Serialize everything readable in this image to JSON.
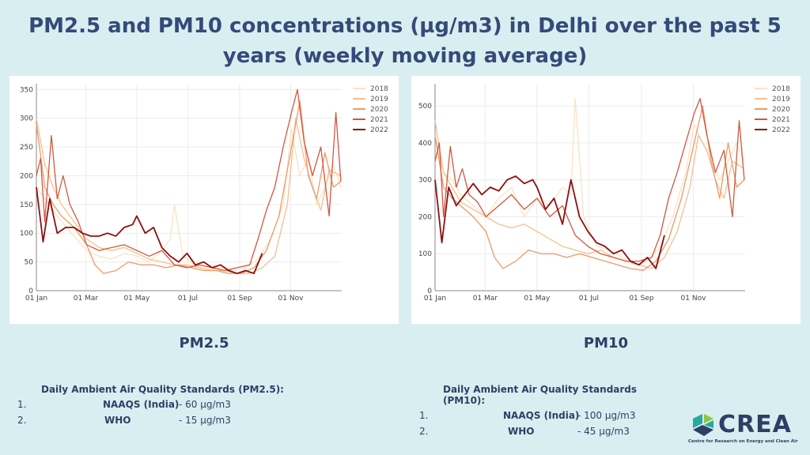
{
  "title": "PM2.5 and PM10 concentrations (µg/m3) in Delhi over the past 5 years (weekly moving average)",
  "charts": {
    "pm25": {
      "label": "PM2.5"
    },
    "pm10": {
      "label": "PM10"
    }
  },
  "chart_data": [
    {
      "type": "line",
      "title": "PM2.5",
      "xlabel": "",
      "ylabel": "",
      "xlim": [
        0,
        365
      ],
      "ylim": [
        0,
        360
      ],
      "yticks": [
        0,
        50,
        100,
        150,
        200,
        250,
        300,
        350
      ],
      "xticks": [
        {
          "x": 0,
          "label": "01 Jan"
        },
        {
          "x": 59,
          "label": "01 Mar"
        },
        {
          "x": 120,
          "label": "01 May"
        },
        {
          "x": 181,
          "label": "01 Jul"
        },
        {
          "x": 243,
          "label": "01 Sep"
        },
        {
          "x": 304,
          "label": "01 Nov"
        }
      ],
      "legend_position": "top-right",
      "grid": true,
      "series": [
        {
          "name": "2018",
          "color": "#fbe3c2",
          "x": [
            0,
            10,
            20,
            30,
            45,
            60,
            75,
            90,
            105,
            120,
            135,
            150,
            160,
            165,
            175,
            190,
            205,
            220,
            235,
            250,
            265,
            280,
            295,
            305,
            315,
            325,
            335,
            345,
            355,
            364
          ],
          "y": [
            180,
            160,
            140,
            120,
            95,
            70,
            60,
            55,
            65,
            60,
            50,
            70,
            90,
            150,
            60,
            45,
            35,
            40,
            35,
            40,
            55,
            90,
            150,
            280,
            200,
            230,
            150,
            180,
            220,
            180
          ]
        },
        {
          "name": "2019",
          "color": "#f4c08e",
          "x": [
            0,
            10,
            20,
            30,
            45,
            60,
            75,
            90,
            105,
            120,
            135,
            150,
            165,
            180,
            195,
            210,
            225,
            240,
            255,
            270,
            285,
            300,
            310,
            320,
            330,
            340,
            350,
            364
          ],
          "y": [
            300,
            220,
            180,
            150,
            120,
            90,
            75,
            70,
            75,
            65,
            55,
            50,
            45,
            45,
            40,
            35,
            35,
            30,
            30,
            40,
            60,
            150,
            300,
            230,
            180,
            140,
            210,
            200
          ]
        },
        {
          "name": "2020",
          "color": "#ec9a6a",
          "x": [
            0,
            10,
            20,
            30,
            45,
            60,
            70,
            80,
            95,
            110,
            125,
            140,
            155,
            170,
            185,
            200,
            215,
            230,
            245,
            260,
            275,
            290,
            305,
            315,
            325,
            335,
            345,
            355,
            364
          ],
          "y": [
            290,
            180,
            150,
            130,
            110,
            80,
            45,
            30,
            35,
            50,
            45,
            45,
            40,
            45,
            40,
            35,
            35,
            30,
            30,
            40,
            70,
            130,
            250,
            330,
            200,
            160,
            240,
            180,
            190
          ]
        },
        {
          "name": "2021",
          "color": "#d3573f",
          "x": [
            0,
            5,
            10,
            18,
            25,
            32,
            40,
            50,
            60,
            75,
            90,
            105,
            120,
            135,
            150,
            165,
            180,
            195,
            210,
            225,
            240,
            255,
            265,
            275,
            285,
            295,
            305,
            312,
            320,
            330,
            340,
            350,
            358,
            364
          ],
          "y": [
            200,
            230,
            120,
            270,
            160,
            200,
            150,
            120,
            80,
            70,
            75,
            80,
            70,
            60,
            70,
            45,
            40,
            45,
            40,
            35,
            40,
            45,
            90,
            140,
            180,
            250,
            310,
            350,
            260,
            200,
            250,
            130,
            310,
            190
          ]
        },
        {
          "name": "2022",
          "color": "#8c1010",
          "x": [
            0,
            8,
            16,
            25,
            35,
            45,
            55,
            65,
            75,
            85,
            95,
            105,
            115,
            120,
            130,
            140,
            150,
            160,
            170,
            180,
            190,
            200,
            210,
            220,
            230,
            240,
            250,
            260,
            270
          ],
          "y": [
            180,
            85,
            160,
            100,
            110,
            110,
            100,
            95,
            95,
            100,
            95,
            110,
            115,
            130,
            100,
            110,
            75,
            60,
            50,
            65,
            45,
            50,
            40,
            45,
            35,
            30,
            35,
            30,
            65
          ]
        }
      ]
    },
    {
      "type": "line",
      "title": "PM10",
      "xlabel": "",
      "ylabel": "",
      "xlim": [
        0,
        365
      ],
      "ylim": [
        0,
        560
      ],
      "yticks": [
        0,
        100,
        200,
        300,
        400,
        500
      ],
      "xticks": [
        {
          "x": 0,
          "label": "01 Jan"
        },
        {
          "x": 59,
          "label": "01 Mar"
        },
        {
          "x": 120,
          "label": "01 May"
        },
        {
          "x": 181,
          "label": "01 Jul"
        },
        {
          "x": 243,
          "label": "01 Sep"
        },
        {
          "x": 304,
          "label": "01 Nov"
        }
      ],
      "legend_position": "top-right",
      "grid": true,
      "series": [
        {
          "name": "2018",
          "color": "#fbe3c2",
          "x": [
            0,
            10,
            20,
            30,
            45,
            60,
            75,
            90,
            105,
            120,
            135,
            150,
            160,
            165,
            175,
            190,
            205,
            220,
            235,
            250,
            265,
            280,
            295,
            305,
            315,
            325,
            335,
            345,
            355,
            364
          ],
          "y": [
            420,
            320,
            300,
            260,
            230,
            200,
            250,
            280,
            200,
            250,
            230,
            280,
            260,
            520,
            200,
            120,
            110,
            90,
            70,
            80,
            120,
            200,
            320,
            450,
            400,
            350,
            300,
            350,
            400,
            350
          ]
        },
        {
          "name": "2019",
          "color": "#f4c08e",
          "x": [
            0,
            10,
            20,
            30,
            45,
            60,
            75,
            90,
            105,
            120,
            135,
            150,
            165,
            180,
            195,
            210,
            225,
            240,
            255,
            270,
            285,
            300,
            310,
            320,
            330,
            340,
            350,
            364
          ],
          "y": [
            460,
            320,
            280,
            240,
            220,
            200,
            180,
            170,
            180,
            160,
            140,
            120,
            110,
            100,
            110,
            90,
            80,
            70,
            60,
            90,
            160,
            280,
            420,
            380,
            300,
            250,
            350,
            330
          ]
        },
        {
          "name": "2020",
          "color": "#ec9a6a",
          "x": [
            0,
            10,
            20,
            30,
            45,
            60,
            70,
            80,
            95,
            110,
            125,
            140,
            155,
            170,
            185,
            200,
            215,
            230,
            245,
            260,
            275,
            290,
            305,
            315,
            325,
            335,
            345,
            355,
            364
          ],
          "y": [
            420,
            280,
            250,
            230,
            200,
            160,
            90,
            60,
            80,
            110,
            100,
            100,
            90,
            100,
            90,
            80,
            70,
            60,
            55,
            80,
            140,
            250,
            400,
            500,
            350,
            250,
            400,
            280,
            300
          ]
        },
        {
          "name": "2021",
          "color": "#d3573f",
          "x": [
            0,
            5,
            10,
            18,
            25,
            32,
            40,
            50,
            60,
            75,
            90,
            105,
            120,
            135,
            150,
            165,
            180,
            195,
            210,
            225,
            240,
            255,
            265,
            275,
            285,
            295,
            305,
            312,
            320,
            330,
            340,
            350,
            358,
            364
          ],
          "y": [
            350,
            400,
            200,
            390,
            280,
            330,
            260,
            240,
            200,
            230,
            260,
            220,
            250,
            200,
            230,
            150,
            120,
            100,
            90,
            80,
            80,
            90,
            150,
            250,
            320,
            400,
            480,
            520,
            420,
            320,
            380,
            200,
            460,
            300
          ]
        },
        {
          "name": "2022",
          "color": "#8c1010",
          "x": [
            0,
            8,
            16,
            25,
            35,
            45,
            55,
            65,
            75,
            85,
            95,
            105,
            115,
            120,
            130,
            140,
            150,
            160,
            170,
            180,
            190,
            200,
            210,
            220,
            230,
            240,
            250,
            260,
            270
          ],
          "y": [
            300,
            130,
            280,
            230,
            260,
            290,
            260,
            280,
            270,
            300,
            310,
            290,
            300,
            280,
            220,
            250,
            180,
            300,
            200,
            160,
            130,
            120,
            100,
            110,
            80,
            70,
            90,
            60,
            150
          ]
        }
      ]
    }
  ],
  "standards": {
    "pm25": {
      "heading": "Daily Ambient Air Quality Standards (PM2.5):",
      "items": [
        {
          "num": "1.",
          "name": "NAAQS (India)",
          "value": "- 60 µg/m3"
        },
        {
          "num": "2.",
          "name": "WHO",
          "value": "- 15 µg/m3"
        }
      ]
    },
    "pm10": {
      "heading": "Daily Ambient Air Quality Standards (PM10):",
      "items": [
        {
          "num": "1.",
          "name": "NAAQS (India)",
          "value": "- 100 µg/m3"
        },
        {
          "num": "2.",
          "name": "WHO",
          "value": "- 45 µg/m3"
        }
      ]
    }
  },
  "logo": {
    "name": "CREA",
    "tagline": "Centre for Research on Energy and Clean Air",
    "colors": [
      "#2e3f66",
      "#27a9a0",
      "#8dc63f"
    ]
  }
}
